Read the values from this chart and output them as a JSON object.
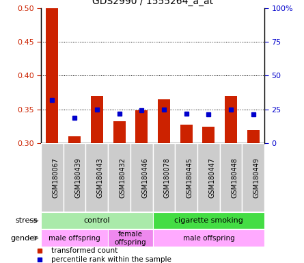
{
  "title": "GDS2990 / 1555264_a_at",
  "samples": [
    "GSM180067",
    "GSM180439",
    "GSM180443",
    "GSM180432",
    "GSM180446",
    "GSM180078",
    "GSM180445",
    "GSM180447",
    "GSM180448",
    "GSM180449"
  ],
  "bar_values": [
    0.5,
    0.31,
    0.37,
    0.333,
    0.349,
    0.365,
    0.328,
    0.325,
    0.37,
    0.32
  ],
  "dot_values": [
    0.364,
    0.338,
    0.35,
    0.344,
    0.349,
    0.35,
    0.344,
    0.343,
    0.35,
    0.343
  ],
  "ylim": [
    0.3,
    0.5
  ],
  "y_ticks": [
    0.3,
    0.35,
    0.4,
    0.45,
    0.5
  ],
  "y2_ticks": [
    0,
    25,
    50,
    75,
    100
  ],
  "bar_color": "#cc2200",
  "dot_color": "#0000cc",
  "bar_bottom": 0.3,
  "stress_groups": [
    {
      "label": "control",
      "start": 0,
      "end": 5,
      "color": "#aaeaaa"
    },
    {
      "label": "cigarette smoking",
      "start": 5,
      "end": 10,
      "color": "#44dd44"
    }
  ],
  "gender_groups": [
    {
      "label": "male offspring",
      "start": 0,
      "end": 3,
      "color": "#ffaaff"
    },
    {
      "label": "female\noffspring",
      "start": 3,
      "end": 5,
      "color": "#ee88ee"
    },
    {
      "label": "male offspring",
      "start": 5,
      "end": 10,
      "color": "#ffaaff"
    }
  ],
  "legend_items": [
    {
      "label": "transformed count",
      "color": "#cc2200"
    },
    {
      "label": "percentile rank within the sample",
      "color": "#0000cc"
    }
  ],
  "tick_bg": "#cccccc",
  "tick_edge": "#ffffff"
}
